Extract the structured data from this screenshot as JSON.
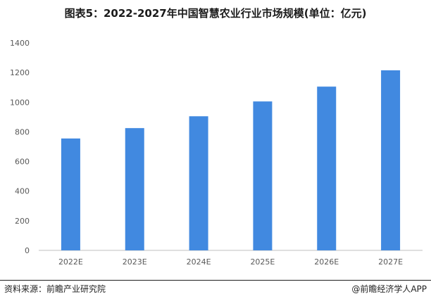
{
  "title": "图表5：2022-2027年中国智慧农业行业市场规模(单位：亿元)",
  "footer": {
    "source": "资料来源：前瞻产业研究院",
    "credit": "@前瞻经济学人APP"
  },
  "colors": {
    "bar": "#4189e0",
    "axis": "#bfbfbf"
  },
  "chart_data": {
    "type": "bar",
    "categories": [
      "2022E",
      "2023E",
      "2024E",
      "2025E",
      "2026E",
      "2027E"
    ],
    "values": [
      755,
      825,
      905,
      1005,
      1105,
      1215
    ],
    "title": "图表5：2022-2027年中国智慧农业行业市场规模(单位：亿元)",
    "xlabel": "",
    "ylabel": "",
    "ylim": [
      0,
      1400
    ],
    "yticks": [
      0,
      200,
      400,
      600,
      800,
      1000,
      1200,
      1400
    ],
    "grid": false,
    "legend": "none"
  }
}
